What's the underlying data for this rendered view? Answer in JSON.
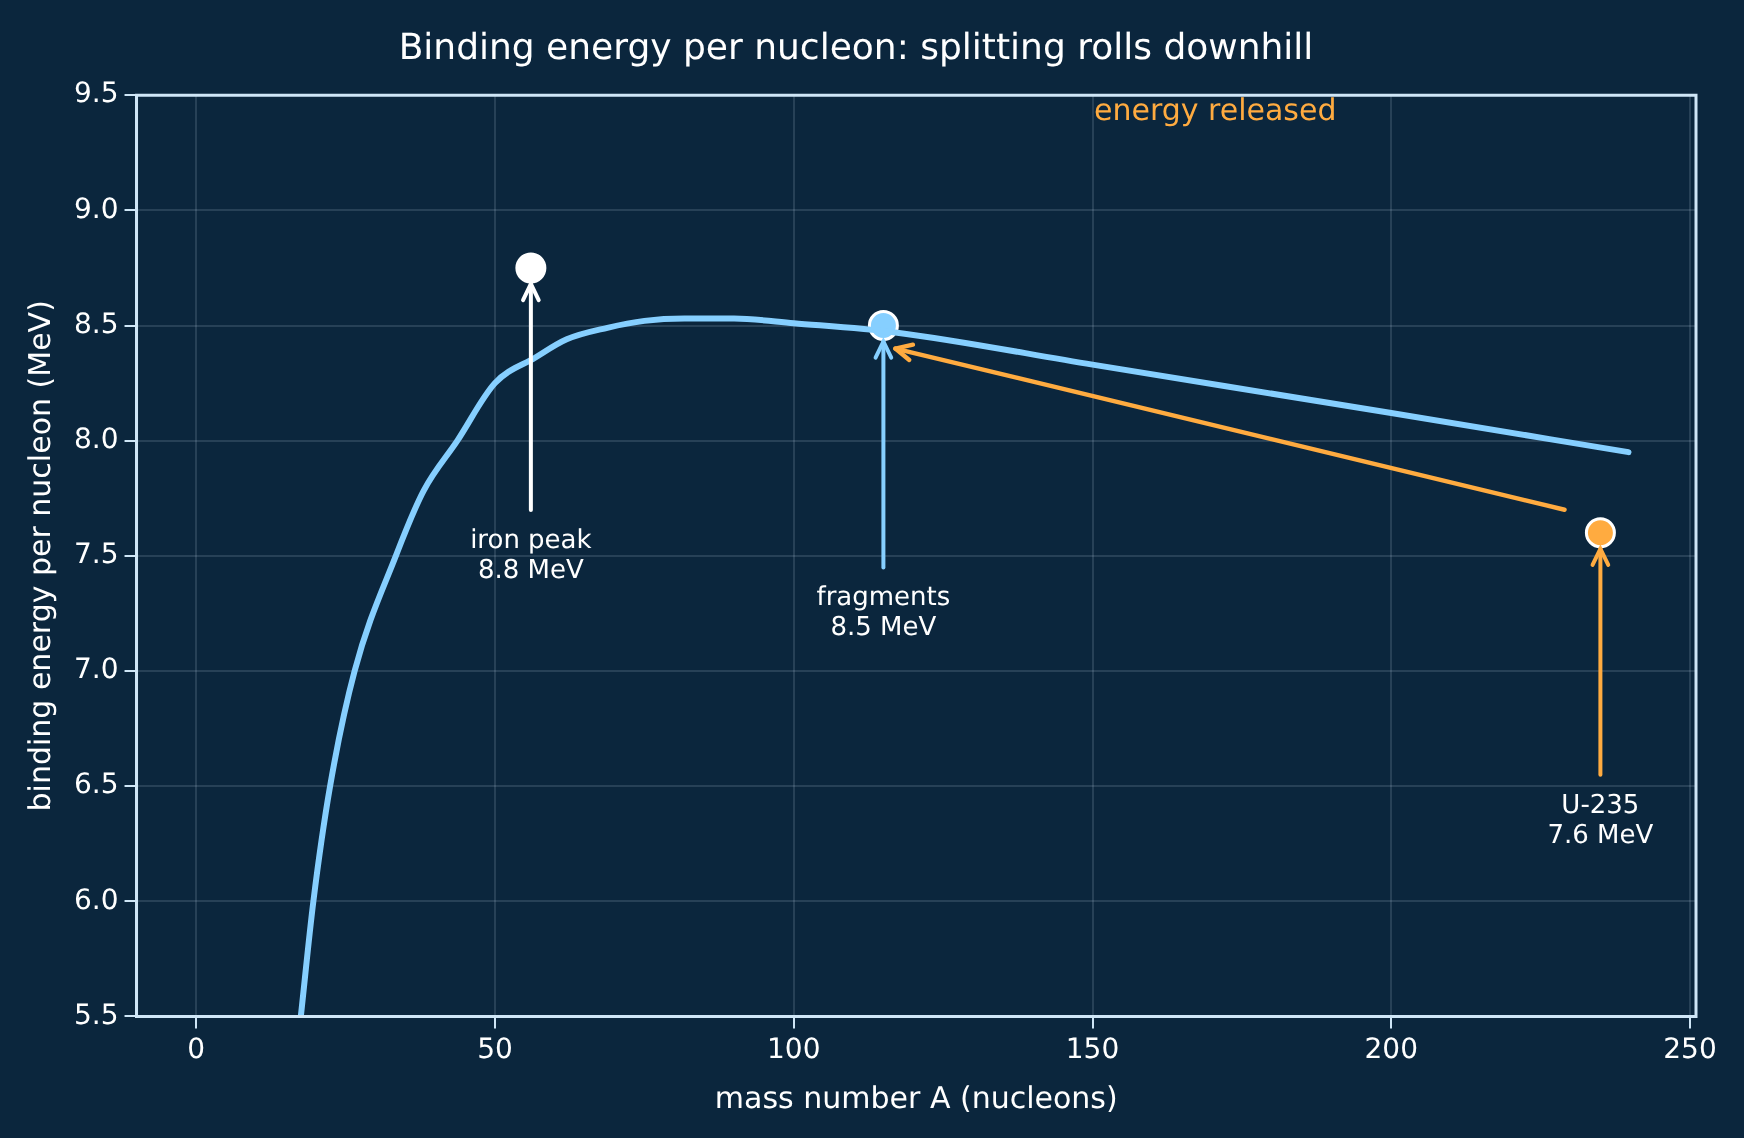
{
  "chart_data": {
    "type": "line",
    "title": "Binding energy per nucleon: splitting rolls downhill",
    "xlabel": "mass number A (nucleons)",
    "ylabel": "binding energy per nucleon (MeV)",
    "xlim": [
      -10,
      251
    ],
    "xticks": [
      0,
      50,
      100,
      150,
      200,
      250
    ],
    "ylim": [
      5.5,
      9.5
    ],
    "yticks": [
      5.5,
      {
        "value": 6,
        "label": "6.0"
      },
      6.5,
      {
        "value": 7,
        "label": "7.0"
      },
      7.5,
      {
        "value": 8,
        "label": "8.0"
      },
      8.5,
      {
        "value": 9,
        "label": "9.0"
      },
      9.5
    ],
    "grid": true,
    "legend": false,
    "series": [
      {
        "color": "#86cfff",
        "marker": "none",
        "line_style": "solid",
        "x": [
          17.5,
          19.6,
          22.4,
          26.5,
          33.4,
          38,
          43.7,
          50,
          56.7,
          62,
          68.8,
          75,
          81.7,
          90,
          100,
          117,
          150,
          200,
          239.7
        ],
        "values": [
          5.5,
          6.0,
          6.5,
          7.0,
          7.5,
          7.78,
          8.0,
          8.25,
          8.36,
          8.44,
          8.49,
          8.52,
          8.53,
          8.53,
          8.51,
          8.47,
          8.33,
          8.12,
          7.95
        ]
      },
      {
        "type": "line",
        "color": "#ffab40",
        "marker": "none",
        "line_style": "solid",
        "x": [
          229,
          117
        ],
        "values": [
          7.7,
          8.4
        ]
      },
      {
        "type": "scatter",
        "marker": "circle",
        "colors": [
          "#ffffff",
          "#86cfff",
          "#ffab40"
        ],
        "x": [
          56,
          115,
          235
        ],
        "values": [
          8.75,
          8.5,
          7.6
        ]
      }
    ],
    "annotations": [
      {
        "text": "iron peak\n8.8 MeV",
        "x": 56,
        "y": 8.75
      },
      {
        "text": "fragments\n8.5 MeV",
        "x": 115,
        "y": 8.5
      },
      {
        "text": "U-235\n7.6 MeV",
        "x": 235,
        "y": 7.6
      },
      "energy released"
    ]
  }
}
